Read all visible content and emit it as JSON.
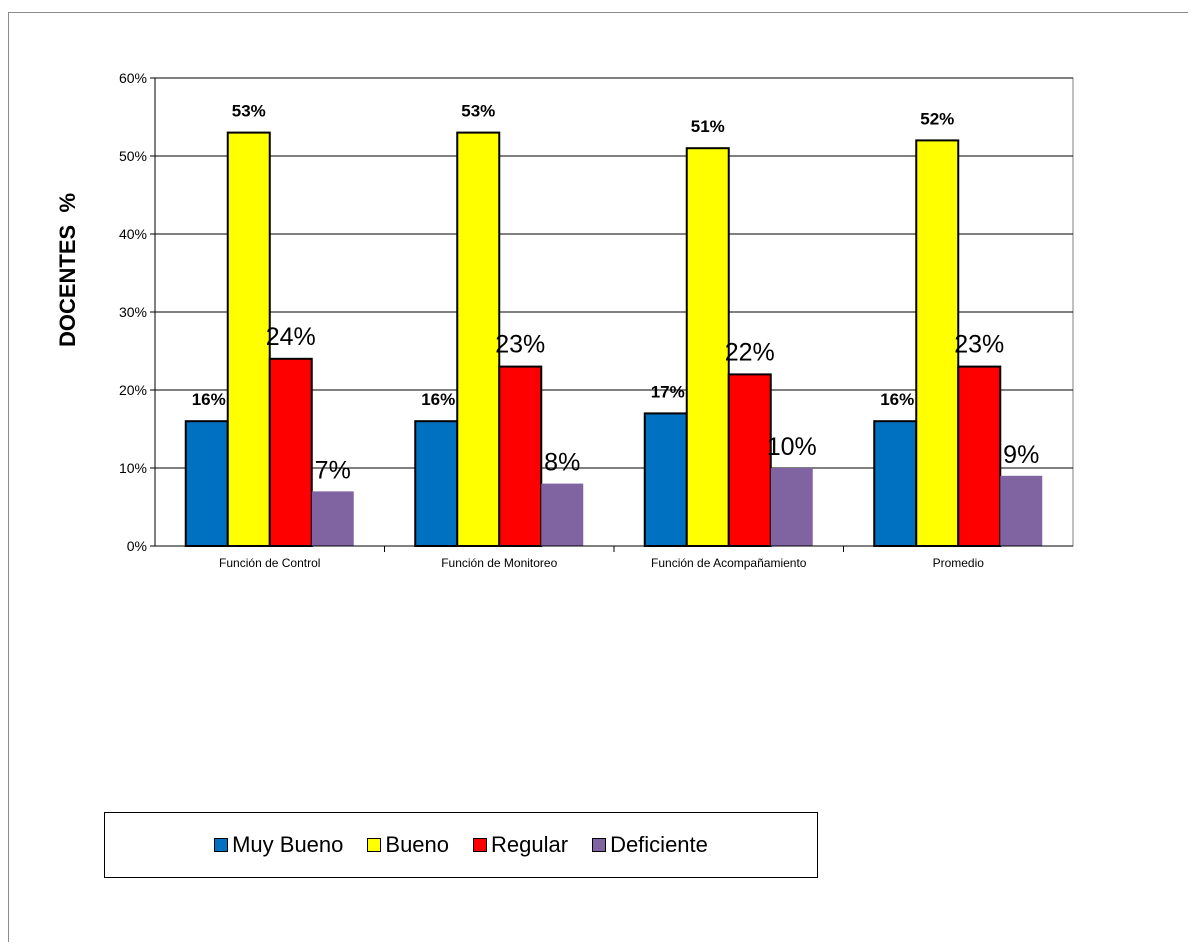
{
  "chart_data": {
    "type": "bar",
    "ylabel": "DOCENTES  %",
    "xlabel": "",
    "ylim": [
      0,
      60
    ],
    "yticks": [
      "0%",
      "10%",
      "20%",
      "30%",
      "40%",
      "50%",
      "60%"
    ],
    "grid": true,
    "legend_position": "bottom",
    "categories": [
      "Función de Control",
      "Función de Monitoreo",
      "Función de Acompañamiento",
      "Promedio"
    ],
    "series": [
      {
        "name": "Muy Bueno",
        "color": "#0070C0",
        "values": [
          16,
          16,
          17,
          16
        ],
        "labels": [
          "16%",
          "16%",
          "17%",
          "16%"
        ]
      },
      {
        "name": "Bueno",
        "color": "#FFFF00",
        "values": [
          53,
          53,
          51,
          52
        ],
        "labels": [
          "53%",
          "53%",
          "51%",
          "52%"
        ]
      },
      {
        "name": "Regular",
        "color": "#FF0000",
        "values": [
          24,
          23,
          22,
          23
        ],
        "labels": [
          "24%",
          "23%",
          "22%",
          "23%"
        ]
      },
      {
        "name": "Deficiente",
        "color": "#8064A2",
        "values": [
          7,
          8,
          10,
          9
        ],
        "labels": [
          "7%",
          "8%",
          "10%",
          "9%"
        ]
      }
    ]
  }
}
